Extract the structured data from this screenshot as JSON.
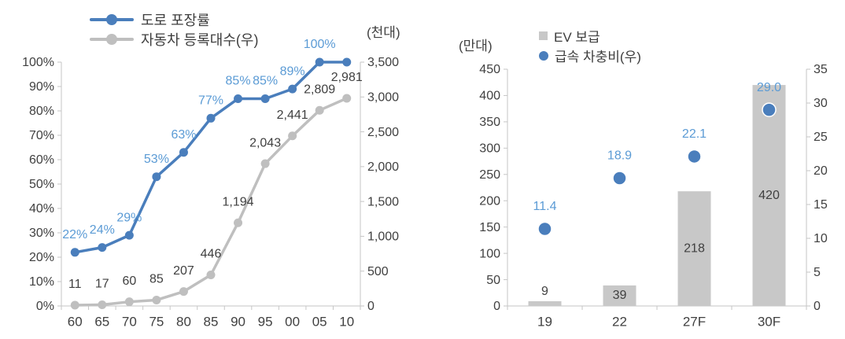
{
  "figure": {
    "background": "#ffffff"
  },
  "palette": {
    "axis_line": "#c6c6c6",
    "tick_text": "#404040",
    "legend_text": "#3d3d3d",
    "accent_blue": "#4a7ebc",
    "label_blue": "#5b9bd5",
    "series_gray": "#bfbfbf",
    "bar_gray": "#c8c8c8"
  },
  "chart_data": [
    {
      "id": "road-paving-vs-car-registrations",
      "type": "line",
      "legend_position": "top",
      "grid": false,
      "categories": [
        "60",
        "65",
        "70",
        "75",
        "80",
        "85",
        "90",
        "95",
        "00",
        "05",
        "10"
      ],
      "series": [
        {
          "name": "도로 포장률",
          "axis": "left",
          "color": "#4a7ebc",
          "label_color": "#5b9bd5",
          "values": [
            22,
            24,
            29,
            53,
            63,
            77,
            85,
            85,
            89,
            100,
            100
          ],
          "labels": [
            "22%",
            "24%",
            "29%",
            "53%",
            "63%",
            "77%",
            "85%",
            "85%",
            "89%",
            "100%",
            ""
          ]
        },
        {
          "name": "자동차 등록대수(우)",
          "axis": "right",
          "color": "#bfbfbf",
          "label_color": "#404040",
          "values": [
            11,
            17,
            60,
            85,
            207,
            446,
            1194,
            2043,
            2441,
            2809,
            2981
          ],
          "labels": [
            "11",
            "17",
            "60",
            "85",
            "207",
            "446",
            "1,194",
            "2,043",
            "2,441",
            "2,809",
            "2,981"
          ]
        }
      ],
      "left_axis": {
        "min": 0,
        "max": 100,
        "step": 10,
        "tick_labels": [
          "0%",
          "10%",
          "20%",
          "30%",
          "40%",
          "50%",
          "60%",
          "70%",
          "80%",
          "90%",
          "100%"
        ]
      },
      "right_axis": {
        "min": 0,
        "max": 3500,
        "step": 500,
        "title": "(천대)",
        "tick_labels": [
          "0",
          "500",
          "1,000",
          "1,500",
          "2,000",
          "2,500",
          "3,000",
          "3,500"
        ]
      }
    },
    {
      "id": "ev-supply-vs-fast-charging-ratio",
      "type": "bar",
      "legend_position": "top",
      "grid": false,
      "categories": [
        "19",
        "22",
        "27F",
        "30F"
      ],
      "series": [
        {
          "name": "EV 보급",
          "kind": "bar",
          "axis": "left",
          "color": "#c8c8c8",
          "label_color": "#404040",
          "values": [
            9,
            39,
            218,
            420
          ],
          "labels": [
            "9",
            "39",
            "218",
            "420"
          ]
        },
        {
          "name": "급속 차충비(우)",
          "kind": "scatter",
          "axis": "right",
          "color": "#4a7ebc",
          "label_color": "#5b9bd5",
          "values": [
            11.4,
            18.9,
            22.1,
            29.0
          ],
          "labels": [
            "11.4",
            "18.9",
            "22.1",
            "29.0"
          ]
        }
      ],
      "left_axis": {
        "min": 0,
        "max": 450,
        "step": 50,
        "title": "(만대)",
        "tick_labels": [
          "0",
          "50",
          "100",
          "150",
          "200",
          "250",
          "300",
          "350",
          "400",
          "450"
        ]
      },
      "right_axis": {
        "min": 0,
        "max": 35,
        "step": 5,
        "tick_labels": [
          "0",
          "5",
          "10",
          "15",
          "20",
          "25",
          "30",
          "35"
        ]
      }
    }
  ]
}
